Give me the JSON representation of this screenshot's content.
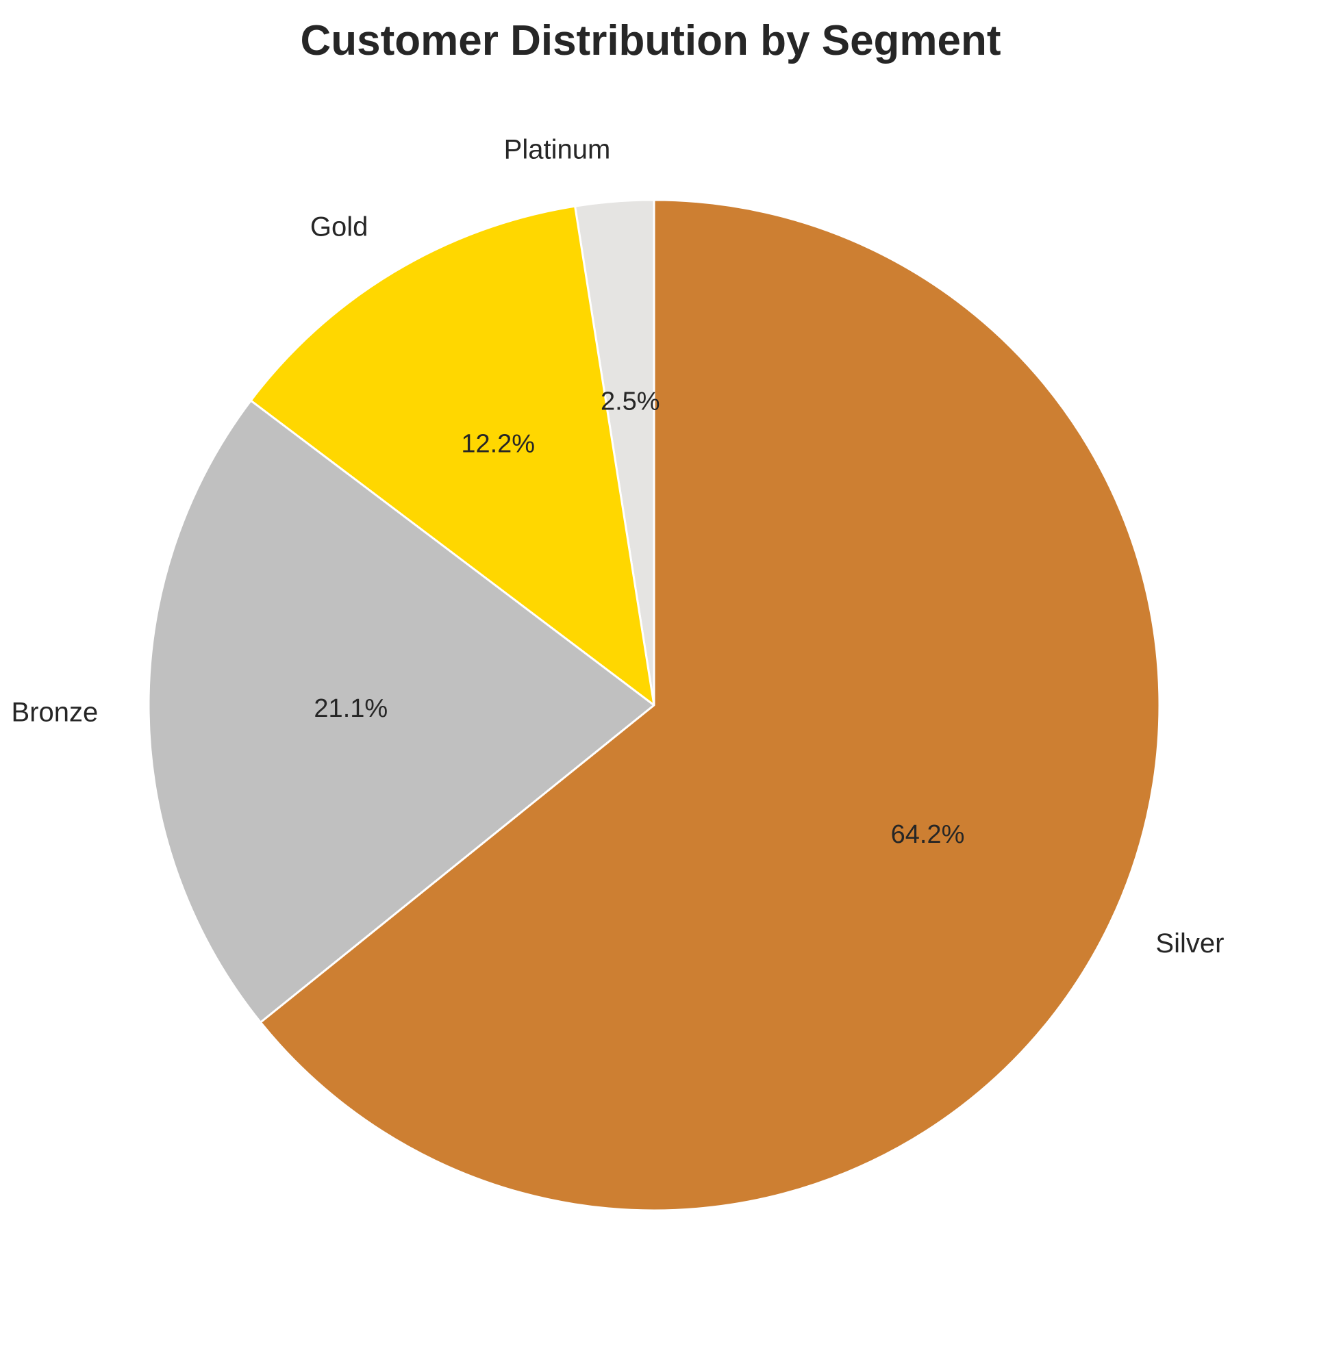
{
  "chart_data": {
    "type": "pie",
    "title": "Customer Distribution by Segment",
    "start_angle_deg": 90,
    "direction": "counterclockwise",
    "slices": [
      {
        "label": "Platinum",
        "value": 2.5,
        "pct_label": "2.5%",
        "color": "#E5E4E2"
      },
      {
        "label": "Gold",
        "value": 12.2,
        "pct_label": "12.2%",
        "color": "#FFD700"
      },
      {
        "label": "Bronze",
        "value": 21.1,
        "pct_label": "21.1%",
        "color": "#C0C0C0"
      },
      {
        "label": "Silver",
        "value": 64.2,
        "pct_label": "64.2%",
        "color": "#CD7F32"
      }
    ],
    "wedge_edge_color": "#ffffff"
  }
}
